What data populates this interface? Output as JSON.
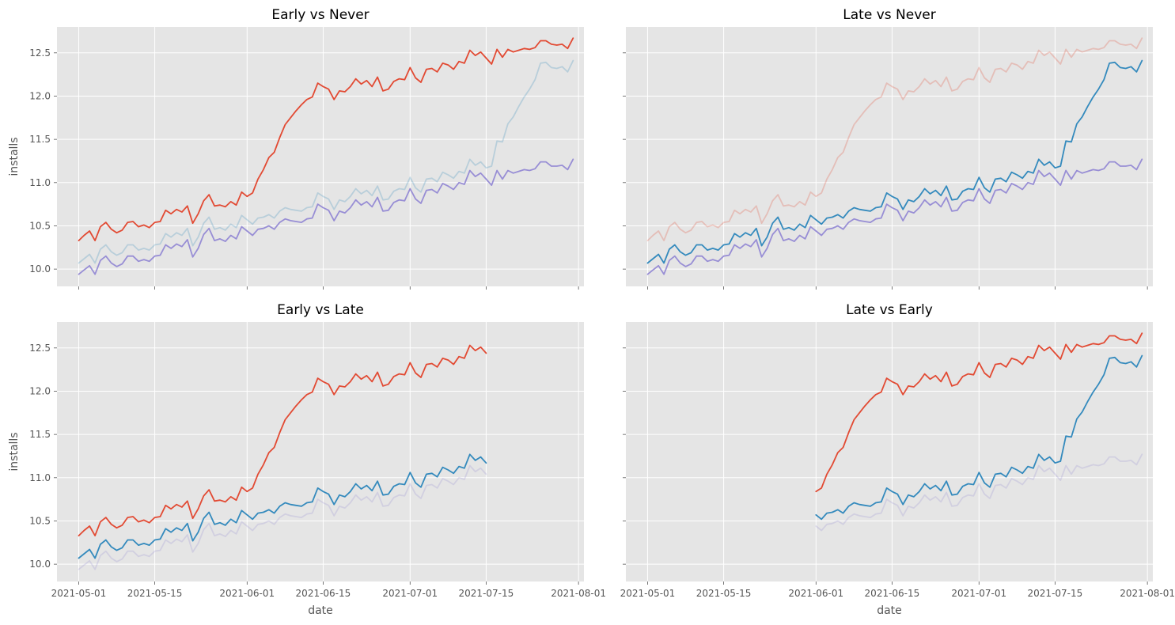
{
  "chart_data": [
    {
      "type": "line",
      "title": "Early vs Never",
      "ylabel": "installs",
      "xlabel": "",
      "ylim": [
        9.8,
        12.8
      ],
      "xlim": [
        "2021-04-27",
        "2021-08-02"
      ],
      "yticks": [
        "10.0",
        "10.5",
        "11.0",
        "11.5",
        "12.0",
        "12.5"
      ],
      "xticks": [
        "2021-05-01",
        "2021-05-15",
        "2021-06-01",
        "2021-06-15",
        "2021-07-01",
        "2021-07-15",
        "2021-08-01"
      ],
      "show_xticklabels": false,
      "show_yticklabels": true,
      "series": [
        {
          "ref": "early",
          "color": "#E24A33",
          "opacity": 1.0,
          "start": "2021-05-01",
          "end": "2021-07-31"
        },
        {
          "ref": "late",
          "color": "#348ABD",
          "opacity": 0.25,
          "start": "2021-05-01",
          "end": "2021-07-31"
        },
        {
          "ref": "never",
          "color": "#988ED5",
          "opacity": 1.0,
          "start": "2021-05-01",
          "end": "2021-07-31"
        }
      ]
    },
    {
      "type": "line",
      "title": "Late vs Never",
      "ylabel": "",
      "xlabel": "",
      "ylim": [
        9.8,
        12.8
      ],
      "xlim": [
        "2021-04-27",
        "2021-08-02"
      ],
      "yticks": [
        "10.0",
        "10.5",
        "11.0",
        "11.5",
        "12.0",
        "12.5"
      ],
      "xticks": [
        "2021-05-01",
        "2021-05-15",
        "2021-06-01",
        "2021-06-15",
        "2021-07-01",
        "2021-07-15",
        "2021-08-01"
      ],
      "show_xticklabels": false,
      "show_yticklabels": false,
      "series": [
        {
          "ref": "early",
          "color": "#E24A33",
          "opacity": 0.25,
          "start": "2021-05-01",
          "end": "2021-07-31"
        },
        {
          "ref": "late",
          "color": "#348ABD",
          "opacity": 1.0,
          "start": "2021-05-01",
          "end": "2021-07-31"
        },
        {
          "ref": "never",
          "color": "#988ED5",
          "opacity": 1.0,
          "start": "2021-05-01",
          "end": "2021-07-31"
        }
      ]
    },
    {
      "type": "line",
      "title": "Early vs Late",
      "ylabel": "installs",
      "xlabel": "date",
      "ylim": [
        9.8,
        12.8
      ],
      "xlim": [
        "2021-04-27",
        "2021-08-02"
      ],
      "yticks": [
        "10.0",
        "10.5",
        "11.0",
        "11.5",
        "12.0",
        "12.5"
      ],
      "xticks": [
        "2021-05-01",
        "2021-05-15",
        "2021-06-01",
        "2021-06-15",
        "2021-07-01",
        "2021-07-15",
        "2021-08-01"
      ],
      "show_xticklabels": true,
      "show_yticklabels": true,
      "series": [
        {
          "ref": "early",
          "color": "#E24A33",
          "opacity": 1.0,
          "start": "2021-05-01",
          "end": "2021-07-15"
        },
        {
          "ref": "late",
          "color": "#348ABD",
          "opacity": 1.0,
          "start": "2021-05-01",
          "end": "2021-07-15"
        },
        {
          "ref": "never",
          "color": "#988ED5",
          "opacity": 0.25,
          "start": "2021-05-01",
          "end": "2021-07-15"
        }
      ]
    },
    {
      "type": "line",
      "title": "Late vs Early",
      "ylabel": "",
      "xlabel": "date",
      "ylim": [
        9.8,
        12.8
      ],
      "xlim": [
        "2021-04-27",
        "2021-08-02"
      ],
      "yticks": [
        "10.0",
        "10.5",
        "11.0",
        "11.5",
        "12.0",
        "12.5"
      ],
      "xticks": [
        "2021-05-01",
        "2021-05-15",
        "2021-06-01",
        "2021-06-15",
        "2021-07-01",
        "2021-07-15",
        "2021-08-01"
      ],
      "show_xticklabels": true,
      "show_yticklabels": false,
      "series": [
        {
          "ref": "early",
          "color": "#E24A33",
          "opacity": 1.0,
          "start": "2021-06-01",
          "end": "2021-07-31"
        },
        {
          "ref": "late",
          "color": "#348ABD",
          "opacity": 1.0,
          "start": "2021-06-01",
          "end": "2021-07-31"
        },
        {
          "ref": "never",
          "color": "#988ED5",
          "opacity": 0.25,
          "start": "2021-06-01",
          "end": "2021-07-31"
        }
      ]
    }
  ],
  "series_values": {
    "start_date": "2021-05-01",
    "early": [
      10.33,
      10.39,
      10.44,
      10.33,
      10.49,
      10.54,
      10.46,
      10.42,
      10.45,
      10.54,
      10.55,
      10.49,
      10.51,
      10.48,
      10.54,
      10.55,
      10.68,
      10.64,
      10.69,
      10.66,
      10.73,
      10.53,
      10.64,
      10.79,
      10.86,
      10.73,
      10.74,
      10.72,
      10.78,
      10.74,
      10.89,
      10.84,
      10.88,
      11.04,
      11.15,
      11.29,
      11.35,
      11.52,
      11.67,
      11.75,
      11.83,
      11.9,
      11.96,
      11.99,
      12.15,
      12.11,
      12.08,
      11.96,
      12.06,
      12.05,
      12.11,
      12.2,
      12.14,
      12.18,
      12.11,
      12.22,
      12.06,
      12.08,
      12.17,
      12.2,
      12.19,
      12.33,
      12.21,
      12.16,
      12.31,
      12.32,
      12.28,
      12.38,
      12.36,
      12.31,
      12.4,
      12.38,
      12.53,
      12.47,
      12.51,
      12.44,
      12.37,
      12.54,
      12.45,
      12.54,
      12.51,
      12.53,
      12.55,
      12.54,
      12.56,
      12.64,
      12.64,
      12.6,
      12.59,
      12.6,
      12.55,
      12.67
    ],
    "late": [
      10.07,
      10.12,
      10.17,
      10.07,
      10.23,
      10.28,
      10.2,
      10.16,
      10.19,
      10.28,
      10.28,
      10.22,
      10.24,
      10.22,
      10.28,
      10.29,
      10.41,
      10.37,
      10.42,
      10.39,
      10.47,
      10.27,
      10.37,
      10.53,
      10.6,
      10.46,
      10.48,
      10.45,
      10.52,
      10.48,
      10.62,
      10.57,
      10.52,
      10.59,
      10.6,
      10.63,
      10.59,
      10.67,
      10.71,
      10.69,
      10.68,
      10.67,
      10.71,
      10.72,
      10.88,
      10.84,
      10.81,
      10.69,
      10.8,
      10.78,
      10.84,
      10.93,
      10.87,
      10.91,
      10.85,
      10.96,
      10.8,
      10.81,
      10.9,
      10.93,
      10.92,
      11.06,
      10.94,
      10.89,
      11.04,
      11.05,
      11.01,
      11.12,
      11.09,
      11.05,
      11.13,
      11.11,
      11.27,
      11.2,
      11.24,
      11.17,
      11.19,
      11.48,
      11.47,
      11.68,
      11.76,
      11.88,
      11.99,
      12.08,
      12.19,
      12.38,
      12.39,
      12.33,
      12.32,
      12.34,
      12.28,
      12.41
    ],
    "never": [
      9.94,
      9.99,
      10.04,
      9.94,
      10.1,
      10.15,
      10.07,
      10.03,
      10.06,
      10.15,
      10.15,
      10.09,
      10.11,
      10.09,
      10.15,
      10.16,
      10.28,
      10.24,
      10.29,
      10.26,
      10.34,
      10.14,
      10.24,
      10.4,
      10.47,
      10.33,
      10.35,
      10.32,
      10.39,
      10.35,
      10.49,
      10.44,
      10.39,
      10.46,
      10.47,
      10.5,
      10.46,
      10.54,
      10.58,
      10.56,
      10.55,
      10.54,
      10.58,
      10.59,
      10.75,
      10.71,
      10.68,
      10.56,
      10.67,
      10.65,
      10.71,
      10.8,
      10.74,
      10.78,
      10.72,
      10.83,
      10.67,
      10.68,
      10.77,
      10.8,
      10.79,
      10.93,
      10.81,
      10.76,
      10.91,
      10.92,
      10.88,
      10.99,
      10.96,
      10.92,
      11.0,
      10.98,
      11.14,
      11.07,
      11.11,
      11.04,
      10.97,
      11.14,
      11.04,
      11.14,
      11.11,
      11.13,
      11.15,
      11.14,
      11.16,
      11.24,
      11.24,
      11.19,
      11.19,
      11.2,
      11.15,
      11.27
    ]
  }
}
